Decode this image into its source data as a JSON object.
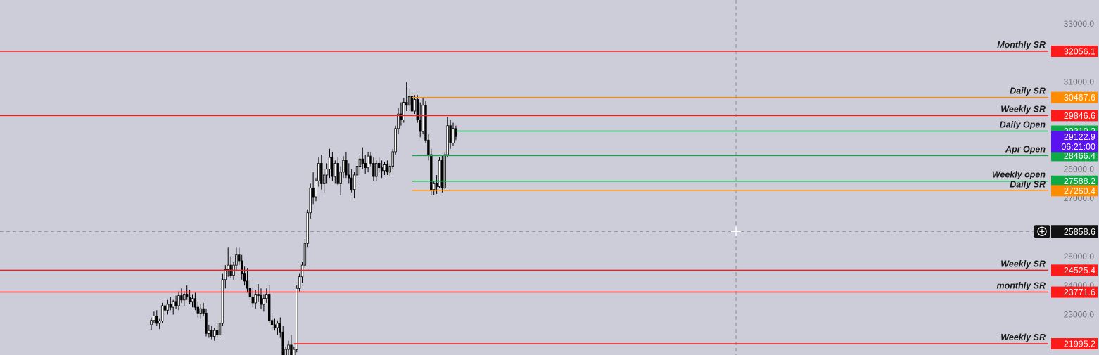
{
  "chart_data": {
    "type": "candlestick",
    "price_axis": {
      "ticks": [
        "33000.0",
        "31000.0",
        "28000.0",
        "27000.0",
        "25000.0",
        "24000.0",
        "23000.0"
      ],
      "range": [
        21000,
        34000
      ]
    },
    "levels": [
      {
        "name": "Monthly SR",
        "value": "32056.1",
        "color": "#ff1a1a",
        "line": "red",
        "start": "full"
      },
      {
        "name": "Daily SR",
        "value": "30467.6",
        "color": "#ff8c00",
        "line": "orange",
        "start": "recent"
      },
      {
        "name": "Weekly SR",
        "value": "29846.6",
        "color": "#ff1a1a",
        "line": "red",
        "start": "full"
      },
      {
        "name": "Daily Open",
        "value": "29310.2",
        "color": "#0faa48",
        "line": "green",
        "start": "latest"
      },
      {
        "name": "Apr Open",
        "value": "28466.4",
        "color": "#0faa48",
        "line": "green",
        "start": "recent"
      },
      {
        "name": "Weekly open",
        "value": "27588.2",
        "color": "#0faa48",
        "line": "green",
        "start": "recent"
      },
      {
        "name": "Daily SR",
        "value": "27260.4",
        "color": "#ff8c00",
        "line": "orange",
        "start": "recent"
      },
      {
        "name": "Weekly SR",
        "value": "24525.4",
        "color": "#ff1a1a",
        "line": "red",
        "start": "full"
      },
      {
        "name": "monthly SR",
        "value": "23771.6",
        "color": "#ff1a1a",
        "line": "red",
        "start": "full"
      },
      {
        "name": "Weekly SR",
        "value": "21995.2",
        "color": "#ff1a1a",
        "line": "red",
        "start": "mid"
      }
    ],
    "current_price": {
      "value": "29122.9",
      "countdown": "06:21:00",
      "color": "#5a12f0"
    },
    "crosshair": {
      "value": "25858.6"
    },
    "candles": [
      [
        22650,
        22900,
        22480,
        22800
      ],
      [
        22800,
        23100,
        22700,
        22950
      ],
      [
        22950,
        23150,
        22600,
        22700
      ],
      [
        22700,
        22850,
        22500,
        22780
      ],
      [
        22780,
        23400,
        22700,
        23300
      ],
      [
        23300,
        23550,
        23050,
        23150
      ],
      [
        23150,
        23500,
        23000,
        23350
      ],
      [
        23350,
        23600,
        23150,
        23250
      ],
      [
        23250,
        23500,
        23000,
        23450
      ],
      [
        23450,
        23650,
        23200,
        23300
      ],
      [
        23300,
        23800,
        23150,
        23650
      ],
      [
        23650,
        23900,
        23400,
        23500
      ],
      [
        23500,
        23800,
        23300,
        23700
      ],
      [
        23700,
        24000,
        23500,
        23600
      ],
      [
        23600,
        23850,
        23350,
        23450
      ],
      [
        23450,
        23700,
        23250,
        23550
      ],
      [
        23550,
        23750,
        23150,
        23250
      ],
      [
        23250,
        23450,
        22900,
        23050
      ],
      [
        23050,
        23350,
        22850,
        23200
      ],
      [
        23200,
        23400,
        22950,
        23050
      ],
      [
        23050,
        23200,
        22250,
        22350
      ],
      [
        22350,
        22650,
        22200,
        22450
      ],
      [
        22450,
        22600,
        22150,
        22250
      ],
      [
        22250,
        22550,
        22100,
        22450
      ],
      [
        22450,
        22700,
        22200,
        22300
      ],
      [
        22300,
        22900,
        22200,
        22700
      ],
      [
        22700,
        24400,
        22600,
        24200
      ],
      [
        24200,
        24700,
        23900,
        24550
      ],
      [
        24550,
        25300,
        24300,
        24700
      ],
      [
        24700,
        25000,
        24250,
        24350
      ],
      [
        24350,
        24800,
        24200,
        24700
      ],
      [
        24700,
        25300,
        24500,
        25050
      ],
      [
        25050,
        25300,
        24700,
        24850
      ],
      [
        24850,
        25050,
        24200,
        24400
      ],
      [
        24400,
        24650,
        24000,
        24150
      ],
      [
        24150,
        24600,
        23750,
        23900
      ],
      [
        23900,
        24200,
        23500,
        23600
      ],
      [
        23600,
        23900,
        23250,
        23400
      ],
      [
        23400,
        23850,
        23200,
        23700
      ],
      [
        23700,
        24050,
        23450,
        23650
      ],
      [
        23650,
        23900,
        23200,
        23350
      ],
      [
        23350,
        23700,
        23100,
        23550
      ],
      [
        23550,
        23900,
        23400,
        23700
      ],
      [
        23700,
        24000,
        22700,
        22800
      ],
      [
        22800,
        23050,
        22450,
        22650
      ],
      [
        22650,
        22850,
        22450,
        22550
      ],
      [
        22550,
        22800,
        22300,
        22700
      ],
      [
        22700,
        22900,
        22200,
        22400
      ],
      [
        22400,
        22600,
        21400,
        21500
      ],
      [
        21500,
        21900,
        21300,
        21800
      ],
      [
        21800,
        22100,
        21600,
        21950
      ],
      [
        21950,
        22300,
        21400,
        21500
      ],
      [
        21500,
        21900,
        21350,
        21800
      ],
      [
        21800,
        24000,
        21700,
        23900
      ],
      [
        23900,
        24400,
        23800,
        24300
      ],
      [
        24300,
        24800,
        24100,
        24700
      ],
      [
        24700,
        25600,
        24600,
        25450
      ],
      [
        25450,
        26600,
        25300,
        26500
      ],
      [
        26500,
        27500,
        26300,
        27350
      ],
      [
        27350,
        27900,
        26800,
        27050
      ],
      [
        27050,
        27700,
        26900,
        27600
      ],
      [
        27600,
        28400,
        27400,
        28200
      ],
      [
        28200,
        28500,
        27300,
        27500
      ],
      [
        27500,
        28000,
        27200,
        27800
      ],
      [
        27800,
        28200,
        27500,
        28000
      ],
      [
        28000,
        28700,
        27700,
        28400
      ],
      [
        28400,
        28600,
        27600,
        27750
      ],
      [
        27750,
        28300,
        27500,
        28200
      ],
      [
        28200,
        28400,
        27450,
        27500
      ],
      [
        27500,
        28100,
        27100,
        27900
      ],
      [
        27900,
        28450,
        27700,
        28300
      ],
      [
        28300,
        28600,
        27700,
        27800
      ],
      [
        27800,
        28200,
        27500,
        27700
      ],
      [
        27700,
        28000,
        27200,
        27300
      ],
      [
        27300,
        27900,
        27000,
        27800
      ],
      [
        27800,
        28300,
        27600,
        28100
      ],
      [
        28100,
        28500,
        27800,
        28350
      ],
      [
        28350,
        28750,
        28000,
        28200
      ],
      [
        28200,
        28500,
        27850,
        28050
      ],
      [
        28050,
        28600,
        27900,
        28450
      ],
      [
        28450,
        28600,
        28100,
        28200
      ],
      [
        28200,
        28400,
        27600,
        27750
      ],
      [
        27750,
        28300,
        27600,
        28200
      ],
      [
        28200,
        28400,
        27900,
        28050
      ],
      [
        28050,
        28300,
        27700,
        27950
      ],
      [
        27950,
        28250,
        27800,
        28150
      ],
      [
        28150,
        28300,
        27800,
        27900
      ],
      [
        27900,
        28200,
        27750,
        28100
      ],
      [
        28100,
        28700,
        28000,
        28600
      ],
      [
        28600,
        29500,
        28500,
        29400
      ],
      [
        29400,
        30100,
        29200,
        29900
      ],
      [
        29900,
        30300,
        29500,
        29700
      ],
      [
        29700,
        30450,
        29600,
        30300
      ],
      [
        30300,
        31000,
        30000,
        30200
      ],
      [
        30200,
        30750,
        30000,
        30500
      ],
      [
        30500,
        30650,
        29800,
        30000
      ],
      [
        30000,
        30550,
        29900,
        30400
      ],
      [
        30400,
        30550,
        29600,
        29700
      ],
      [
        29700,
        30300,
        29100,
        29300
      ],
      [
        29300,
        30450,
        29200,
        30200
      ],
      [
        30200,
        30350,
        28900,
        29000
      ],
      [
        29000,
        29200,
        28300,
        28500
      ],
      [
        28500,
        28700,
        27100,
        27300
      ],
      [
        27300,
        27600,
        27100,
        27500
      ],
      [
        27500,
        27800,
        27150,
        27400
      ],
      [
        27400,
        28400,
        27350,
        28300
      ],
      [
        28300,
        28500,
        27200,
        27350
      ],
      [
        27350,
        28600,
        27300,
        28500
      ],
      [
        28500,
        29800,
        28400,
        29500
      ],
      [
        29500,
        29700,
        28700,
        28900
      ],
      [
        28900,
        29600,
        28800,
        29400
      ],
      [
        29400,
        29500,
        29000,
        29123
      ]
    ]
  }
}
